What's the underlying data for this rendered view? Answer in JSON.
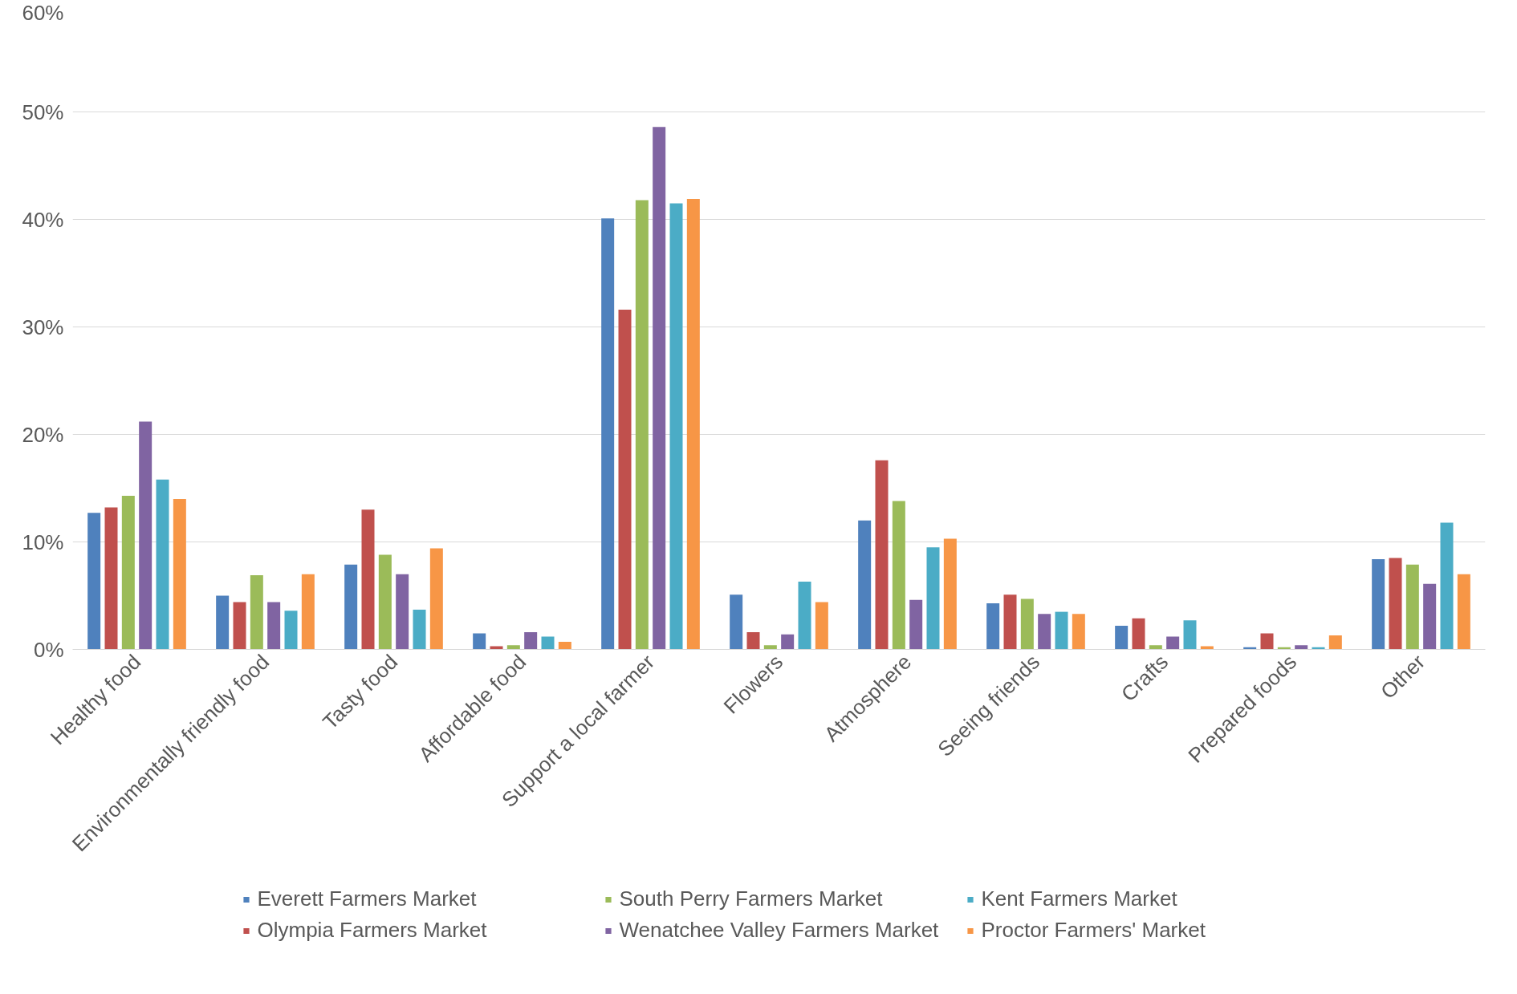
{
  "chart_data": {
    "type": "bar",
    "categories": [
      "Healthy food",
      "Environmentally friendly food",
      "Tasty food",
      "Affordable food",
      "Support a local farmer",
      "Flowers",
      "Atmosphere",
      "Seeing friends",
      "Crafts",
      "Prepared foods",
      "Other"
    ],
    "series": [
      {
        "name": "Everett Farmers Market",
        "color": "#4f81bd",
        "values": [
          12.7,
          5.0,
          7.9,
          1.5,
          40.1,
          5.1,
          12.0,
          4.3,
          2.2,
          0.2,
          8.4
        ]
      },
      {
        "name": "Olympia Farmers Market",
        "color": "#c0504d",
        "values": [
          13.2,
          4.4,
          13.0,
          0.3,
          31.6,
          1.6,
          17.6,
          5.1,
          2.9,
          1.5,
          8.5
        ]
      },
      {
        "name": "South Perry Farmers Market",
        "color": "#9bbb59",
        "values": [
          14.3,
          6.9,
          8.8,
          0.4,
          41.8,
          0.4,
          13.8,
          4.7,
          0.4,
          0.2,
          7.9
        ]
      },
      {
        "name": "Wenatchee Valley Farmers Market",
        "color": "#8064a2",
        "values": [
          21.2,
          4.4,
          7.0,
          1.6,
          48.6,
          1.4,
          4.6,
          3.3,
          1.2,
          0.4,
          6.1
        ]
      },
      {
        "name": "Kent Farmers Market",
        "color": "#4bacc6",
        "values": [
          15.8,
          3.6,
          3.7,
          1.2,
          41.5,
          6.3,
          9.5,
          3.5,
          2.7,
          0.2,
          11.8
        ]
      },
      {
        "name": "Proctor Farmers' Market",
        "color": "#f79646",
        "values": [
          14.0,
          7.0,
          9.4,
          0.7,
          41.9,
          4.4,
          10.3,
          3.3,
          0.3,
          1.3,
          7.0
        ]
      }
    ],
    "ylim": [
      0,
      60
    ],
    "yticks": [
      {
        "value": 0,
        "label": "0%"
      },
      {
        "value": 10,
        "label": "10%"
      },
      {
        "value": 20,
        "label": "20%"
      },
      {
        "value": 30,
        "label": "30%"
      },
      {
        "value": 40,
        "label": "40%"
      },
      {
        "value": 50,
        "label": "50%"
      },
      {
        "value": 60,
        "label": "60%"
      }
    ],
    "grid": "y",
    "legend": "bottom"
  }
}
